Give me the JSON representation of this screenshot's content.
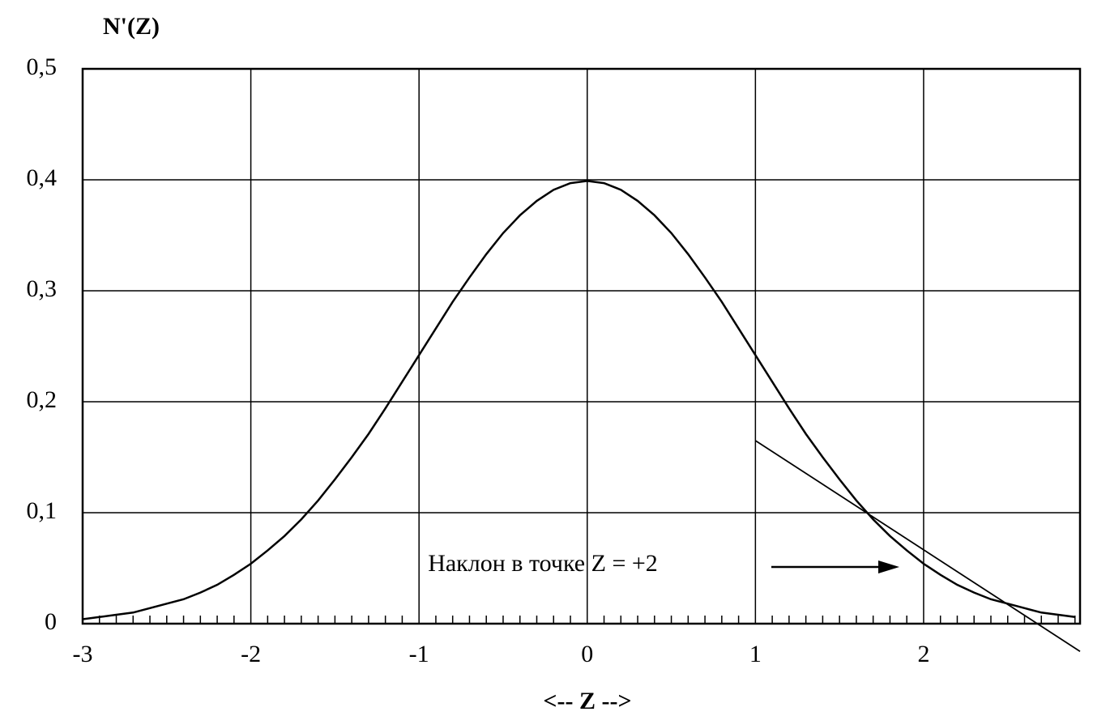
{
  "chart_data": {
    "type": "line",
    "y_label": "N'(Z)",
    "x_label": "<-- Z -->",
    "annotation": "Наклон в точке Z = +2",
    "x": [
      -3,
      -2.9,
      -2.8,
      -2.7,
      -2.6,
      -2.5,
      -2.4,
      -2.3,
      -2.2,
      -2.1,
      -2,
      -1.9,
      -1.8,
      -1.7,
      -1.6,
      -1.5,
      -1.4,
      -1.3,
      -1.2,
      -1.1,
      -1,
      -0.9,
      -0.8,
      -0.7,
      -0.6,
      -0.5,
      -0.4,
      -0.3,
      -0.2,
      -0.1,
      0,
      0.1,
      0.2,
      0.3,
      0.4,
      0.5,
      0.6,
      0.7,
      0.8,
      0.9,
      1,
      1.1,
      1.2,
      1.3,
      1.4,
      1.5,
      1.6,
      1.7,
      1.8,
      1.9,
      2,
      2.1,
      2.2,
      2.3,
      2.4,
      2.5,
      2.6,
      2.7,
      2.8,
      2.9
    ],
    "values": [
      0.004,
      0.006,
      0.008,
      0.01,
      0.014,
      0.018,
      0.022,
      0.028,
      0.035,
      0.044,
      0.054,
      0.066,
      0.079,
      0.094,
      0.111,
      0.13,
      0.15,
      0.171,
      0.194,
      0.218,
      0.242,
      0.266,
      0.29,
      0.312,
      0.333,
      0.352,
      0.368,
      0.381,
      0.391,
      0.397,
      0.399,
      0.397,
      0.391,
      0.381,
      0.368,
      0.352,
      0.333,
      0.312,
      0.29,
      0.266,
      0.242,
      0.218,
      0.194,
      0.171,
      0.15,
      0.13,
      0.111,
      0.094,
      0.079,
      0.066,
      0.054,
      0.044,
      0.035,
      0.028,
      0.022,
      0.018,
      0.014,
      0.01,
      0.008,
      0.006
    ],
    "color": "#000000",
    "tangent": {
      "x": [
        1,
        2.93
      ],
      "values": [
        0.165,
        -0.025
      ],
      "color": "#000000"
    },
    "xlim": [
      -3,
      2.93
    ],
    "ylim": [
      0,
      0.5
    ],
    "xticks": [
      -3,
      -2,
      -1,
      0,
      1,
      2
    ],
    "yticks": [
      0,
      {
        "value": 0.1,
        "label": "0,1"
      },
      {
        "value": 0.2,
        "label": "0,2"
      },
      {
        "value": 0.3,
        "label": "0,3"
      },
      {
        "value": 0.4,
        "label": "0,4"
      },
      {
        "value": 0.5,
        "label": "0,5"
      }
    ],
    "grid": true
  }
}
